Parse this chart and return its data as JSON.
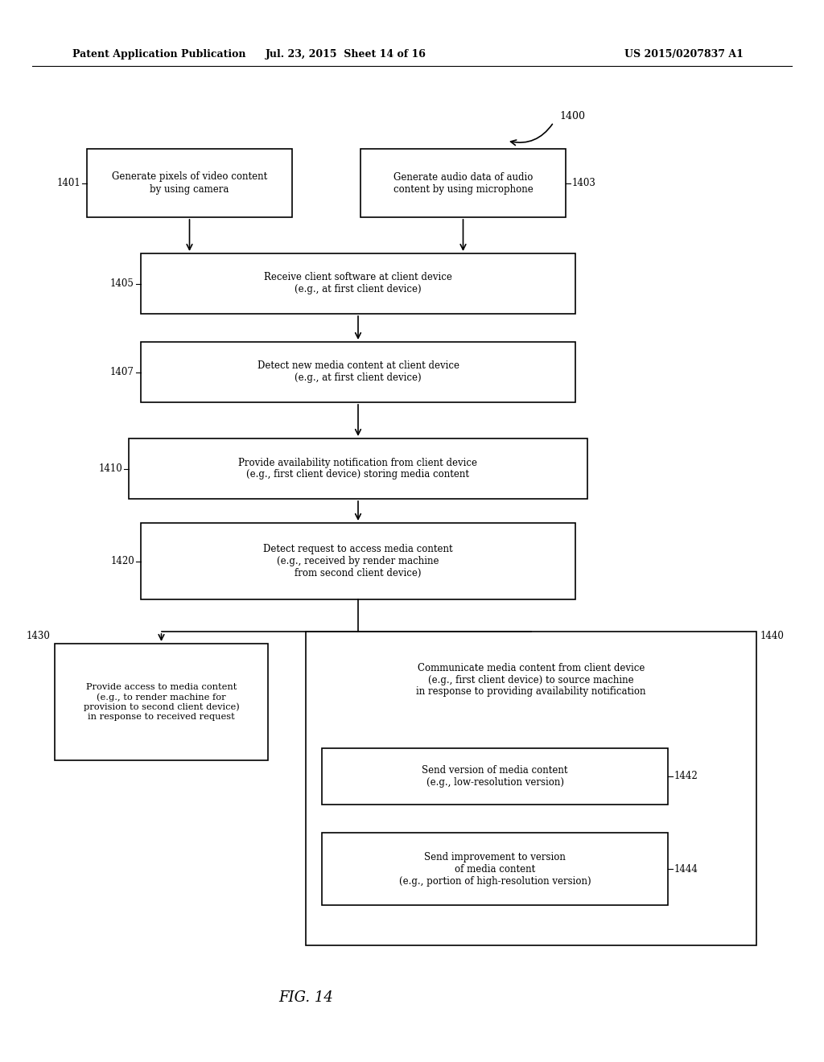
{
  "bg_color": "#ffffff",
  "header_left": "Patent Application Publication",
  "header_mid": "Jul. 23, 2015  Sheet 14 of 16",
  "header_right": "US 2015/0207837 A1",
  "fig_label": "FIG. 14",
  "diagram_label": "1400"
}
